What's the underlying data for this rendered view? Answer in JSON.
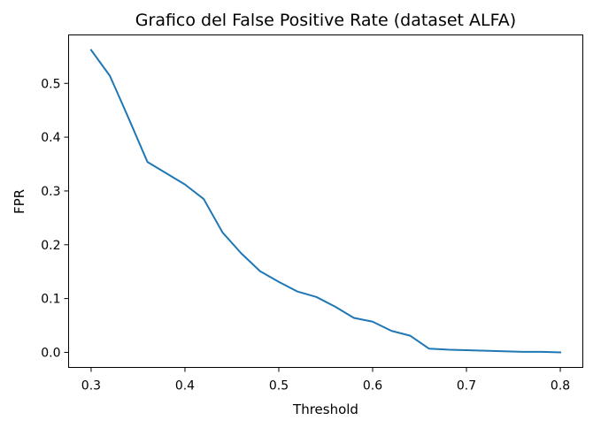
{
  "chart_data": {
    "type": "line",
    "title": "Grafico del False Positive Rate (dataset ALFA)",
    "xlabel": "Threshold",
    "ylabel": "FPR",
    "xlim": [
      0.276,
      0.824
    ],
    "ylim": [
      -0.028,
      0.59
    ],
    "xticks": [
      0.3,
      0.4,
      0.5,
      0.6,
      0.7,
      0.8
    ],
    "xtick_labels": [
      "0.3",
      "0.4",
      "0.5",
      "0.6",
      "0.7",
      "0.8"
    ],
    "yticks": [
      0.0,
      0.1,
      0.2,
      0.3,
      0.4,
      0.5
    ],
    "ytick_labels": [
      "0.0",
      "0.1",
      "0.2",
      "0.3",
      "0.4",
      "0.5"
    ],
    "grid": false,
    "legend": "none",
    "series": [
      {
        "color": "#1f77b4",
        "x": [
          0.3,
          0.32,
          0.34,
          0.36,
          0.38,
          0.4,
          0.42,
          0.44,
          0.46,
          0.48,
          0.5,
          0.52,
          0.54,
          0.56,
          0.58,
          0.6,
          0.62,
          0.64,
          0.66,
          0.68,
          0.7,
          0.72,
          0.74,
          0.76,
          0.78,
          0.8
        ],
        "y": [
          0.562,
          0.514,
          0.435,
          0.354,
          0.333,
          0.312,
          0.285,
          0.223,
          0.184,
          0.151,
          0.131,
          0.113,
          0.103,
          0.085,
          0.064,
          0.057,
          0.04,
          0.031,
          0.007,
          0.005,
          0.004,
          0.003,
          0.002,
          0.001,
          0.001,
          0.0
        ]
      }
    ]
  }
}
